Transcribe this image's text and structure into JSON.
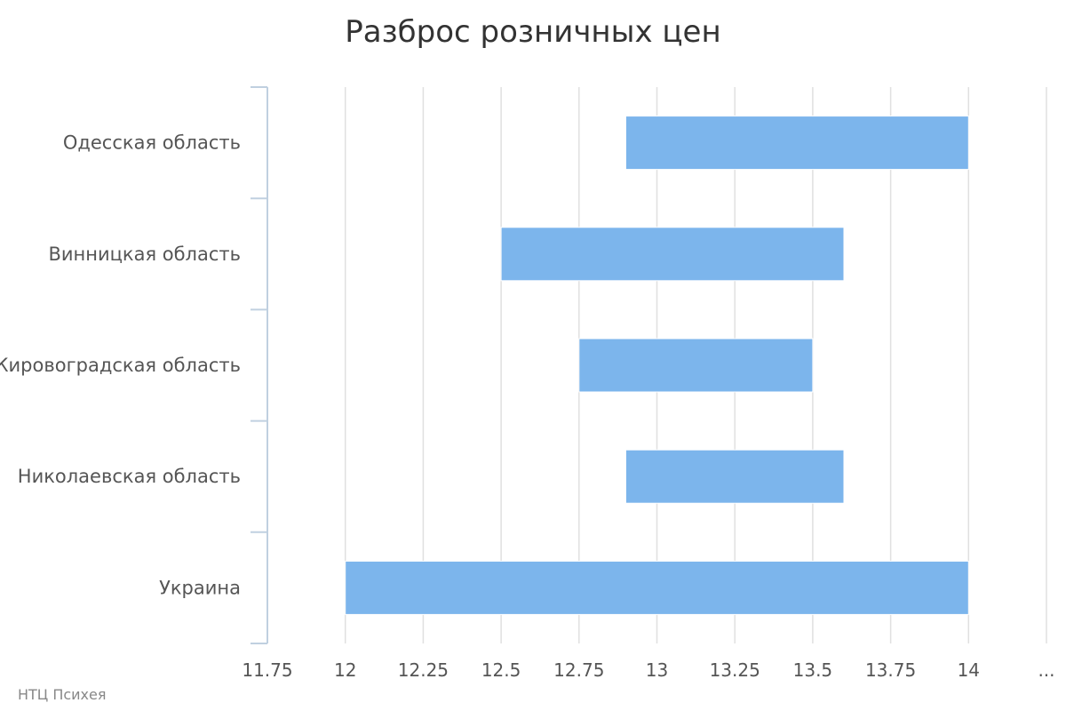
{
  "credit": "НТЦ Психея",
  "colors": {
    "bar": "#7cb5ec",
    "grid": "#e0e0e0",
    "axis": "#c0d0e0",
    "text": "#555555",
    "title": "#333333"
  },
  "chart_data": {
    "type": "bar",
    "orientation": "horizontal",
    "subtype": "range",
    "title": "Разброс розничных цен",
    "xlabel": "",
    "ylabel": "",
    "categories": [
      "Одесская область",
      "Винницкая область",
      "Кировоградская область",
      "Николаевская область",
      "Украина"
    ],
    "series": [
      {
        "ranges": [
          [
            12.9,
            14.0
          ],
          [
            12.5,
            13.6
          ],
          [
            12.75,
            13.5
          ],
          [
            12.9,
            13.6
          ],
          [
            12.0,
            14.0
          ]
        ]
      }
    ],
    "xlim": [
      11.75,
      14.25
    ],
    "ticks": [
      "11.75",
      "12",
      "12.25",
      "12.5",
      "12.75",
      "13",
      "13.25",
      "13.5",
      "13.75",
      "14",
      "..."
    ],
    "grid": true,
    "legend": "none"
  }
}
